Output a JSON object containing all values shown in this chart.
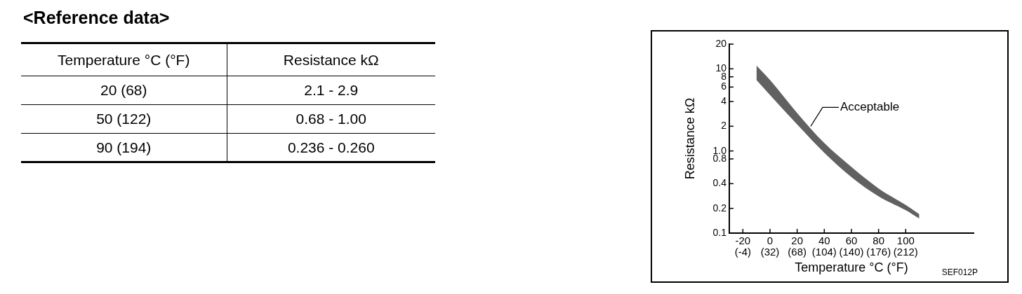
{
  "chart_data": [
    {
      "type": "other",
      "title": "<Reference data>",
      "annotations": [
        "Temperature °C (°F)",
        "Resistance kΩ",
        "20 (68)",
        "2.1 - 2.9",
        "50 (122)",
        "0.68 - 1.00",
        "90 (194)",
        "0.236 - 0.260"
      ]
    },
    {
      "type": "line",
      "xlabel": "Temperature °C (°F)",
      "ylabel": "Resistance kΩ",
      "series": [
        {
          "type": "area",
          "color": "#000000",
          "x": [
            -10,
            0,
            20,
            40,
            60,
            80,
            100,
            110
          ],
          "values": [
            null,
            null,
            null,
            null,
            null,
            null,
            null,
            null
          ],
          "upper": [
            11,
            7.3,
            2.9,
            1.25,
            0.64,
            0.35,
            0.22,
            0.17
          ],
          "lower": [
            7.3,
            4.8,
            2.1,
            0.95,
            0.48,
            0.28,
            0.19,
            0.15
          ]
        }
      ],
      "xlim": [
        -30,
        150
      ],
      "ylim": [
        0.1,
        20
      ],
      "xticks": [
        -20,
        0,
        20,
        40,
        60,
        80,
        100
      ],
      "x2lim": [
        -22,
        302
      ],
      "x2ticks": [
        {
          "value": -4,
          "label": "(-4)"
        },
        {
          "value": 32,
          "label": "(32)"
        },
        {
          "value": 68,
          "label": "(68)"
        },
        {
          "value": 104,
          "label": "(104)"
        },
        {
          "value": 140,
          "label": "(140)"
        },
        {
          "value": 176,
          "label": "(176)"
        },
        {
          "value": 212,
          "label": "(212)"
        }
      ],
      "yticks": [
        0.1,
        0.2,
        0.4,
        0.8,
        {
          "value": 1,
          "label": "1.0"
        },
        2,
        4,
        6,
        8,
        10,
        20
      ],
      "log": "y",
      "marker": "none",
      "annotations": [
        {
          "text": "Acceptable",
          "x": 30,
          "y": 2.0
        },
        "SEF012P"
      ]
    }
  ]
}
